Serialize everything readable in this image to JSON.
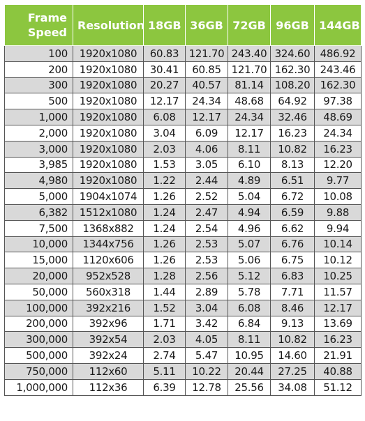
{
  "table": {
    "headers": [
      "Frame\nSpeed",
      "Resolution",
      "18GB",
      "36GB",
      "72GB",
      "96GB",
      "144GB"
    ],
    "rows": [
      [
        "100",
        "1920x1080",
        "60.83",
        "121.70",
        "243.40",
        "324.60",
        "486.92"
      ],
      [
        "200",
        "1920x1080",
        "30.41",
        "60.85",
        "121.70",
        "162.30",
        "243.46"
      ],
      [
        "300",
        "1920x1080",
        "20.27",
        "40.57",
        "81.14",
        "108.20",
        "162.30"
      ],
      [
        "500",
        "1920x1080",
        "12.17",
        "24.34",
        "48.68",
        "64.92",
        "97.38"
      ],
      [
        "1,000",
        "1920x1080",
        "6.08",
        "12.17",
        "24.34",
        "32.46",
        "48.69"
      ],
      [
        "2,000",
        "1920x1080",
        "3.04",
        "6.09",
        "12.17",
        "16.23",
        "24.34"
      ],
      [
        "3,000",
        "1920x1080",
        "2.03",
        "4.06",
        "8.11",
        "10.82",
        "16.23"
      ],
      [
        "3,985",
        "1920x1080",
        "1.53",
        "3.05",
        "6.10",
        "8.13",
        "12.20"
      ],
      [
        "4,980",
        "1920x1080",
        "1.22",
        "2.44",
        "4.89",
        "6.51",
        "9.77"
      ],
      [
        "5,000",
        "1904x1074",
        "1.26",
        "2.52",
        "5.04",
        "6.72",
        "10.08"
      ],
      [
        "6,382",
        "1512x1080",
        "1.24",
        "2.47",
        "4.94",
        "6.59",
        "9.88"
      ],
      [
        "7,500",
        "1368x882",
        "1.24",
        "2.54",
        "4.96",
        "6.62",
        "9.94"
      ],
      [
        "10,000",
        "1344x756",
        "1.26",
        "2.53",
        "5.07",
        "6.76",
        "10.14"
      ],
      [
        "15,000",
        "1120x606",
        "1.26",
        "2.53",
        "5.06",
        "6.75",
        "10.12"
      ],
      [
        "20,000",
        "952x528",
        "1.28",
        "2.56",
        "5.12",
        "6.83",
        "10.25"
      ],
      [
        "50,000",
        "560x318",
        "1.44",
        "2.89",
        "5.78",
        "7.71",
        "11.57"
      ],
      [
        "100,000",
        "392x216",
        "1.52",
        "3.04",
        "6.08",
        "8.46",
        "12.17"
      ],
      [
        "200,000",
        "392x96",
        "1.71",
        "3.42",
        "6.84",
        "9.13",
        "13.69"
      ],
      [
        "300,000",
        "392x54",
        "2.03",
        "4.05",
        "8.11",
        "10.82",
        "16.23"
      ],
      [
        "500,000",
        "392x24",
        "2.74",
        "5.47",
        "10.95",
        "14.60",
        "21.91"
      ],
      [
        "750,000",
        "112x60",
        "5.11",
        "10.22",
        "20.44",
        "27.25",
        "40.88"
      ],
      [
        "1,000,000",
        "112x36",
        "6.39",
        "12.78",
        "25.56",
        "34.08",
        "51.12"
      ]
    ]
  },
  "colors": {
    "header_bg": "#8cc63f",
    "header_text": "#ffffff",
    "row_shaded": "#d9d9d9",
    "row_plain": "#ffffff",
    "border": "#555555"
  }
}
